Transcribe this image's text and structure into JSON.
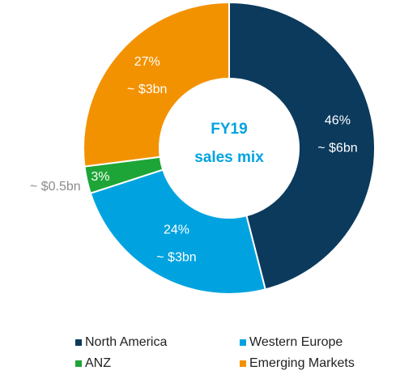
{
  "chart_data": {
    "type": "donut",
    "center_label": [
      "FY19",
      "sales mix"
    ],
    "categories": [
      "North America",
      "Western Europe",
      "ANZ",
      "Emerging Markets"
    ],
    "values": [
      46,
      24,
      3,
      27
    ],
    "value_labels": [
      "46%",
      "24%",
      "3%",
      "27%"
    ],
    "amount_labels": [
      "~ $6bn",
      "~ $3bn",
      "~ $0.5bn",
      "~ $3bn"
    ],
    "colors": [
      "#0b3a5c",
      "#00a3e0",
      "#1ea537",
      "#f39200"
    ],
    "legend": "bottom"
  }
}
